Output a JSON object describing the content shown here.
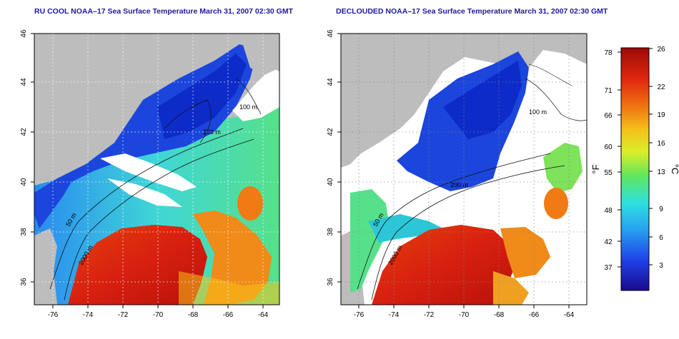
{
  "panels": [
    {
      "id": "left",
      "title": "RU COOL NOAA–17 Sea Surface Temperature March 31, 2007 02:30 GMT",
      "x_ticks": [
        "-76",
        "-74",
        "-72",
        "-70",
        "-68",
        "-66",
        "-64"
      ],
      "y_ticks": [
        "46",
        "44",
        "42",
        "40",
        "38",
        "36"
      ],
      "contour_labels": [
        "100 m",
        "200 m",
        "2000 m",
        "50 m",
        "3000 m"
      ]
    },
    {
      "id": "right",
      "title": "DECLOUDED NOAA–17 Sea Surface Temperature March 31, 2007 02:30 GMT",
      "x_ticks": [
        "-76",
        "-74",
        "-72",
        "-70",
        "-68",
        "-66",
        "-64"
      ],
      "y_ticks": [
        "46",
        "44",
        "42",
        "40",
        "38",
        "36"
      ],
      "contour_labels": [
        "100 m",
        "200 m",
        "2000 m",
        "50 m",
        "3000 m"
      ]
    }
  ],
  "colorbar": {
    "fahrenheit_ticks": [
      "78",
      "71",
      "66",
      "60",
      "55",
      "48",
      "42",
      "37"
    ],
    "celsius_ticks": [
      "26",
      "22",
      "19",
      "16",
      "13",
      "9",
      "6",
      "3"
    ],
    "fahrenheit_label": "°F",
    "celsius_label": "°C"
  },
  "colors": {
    "land": "#bdbdbd",
    "cloud": "#ffffff",
    "cold": "#0a2bd6",
    "warm": "#d81e10"
  }
}
